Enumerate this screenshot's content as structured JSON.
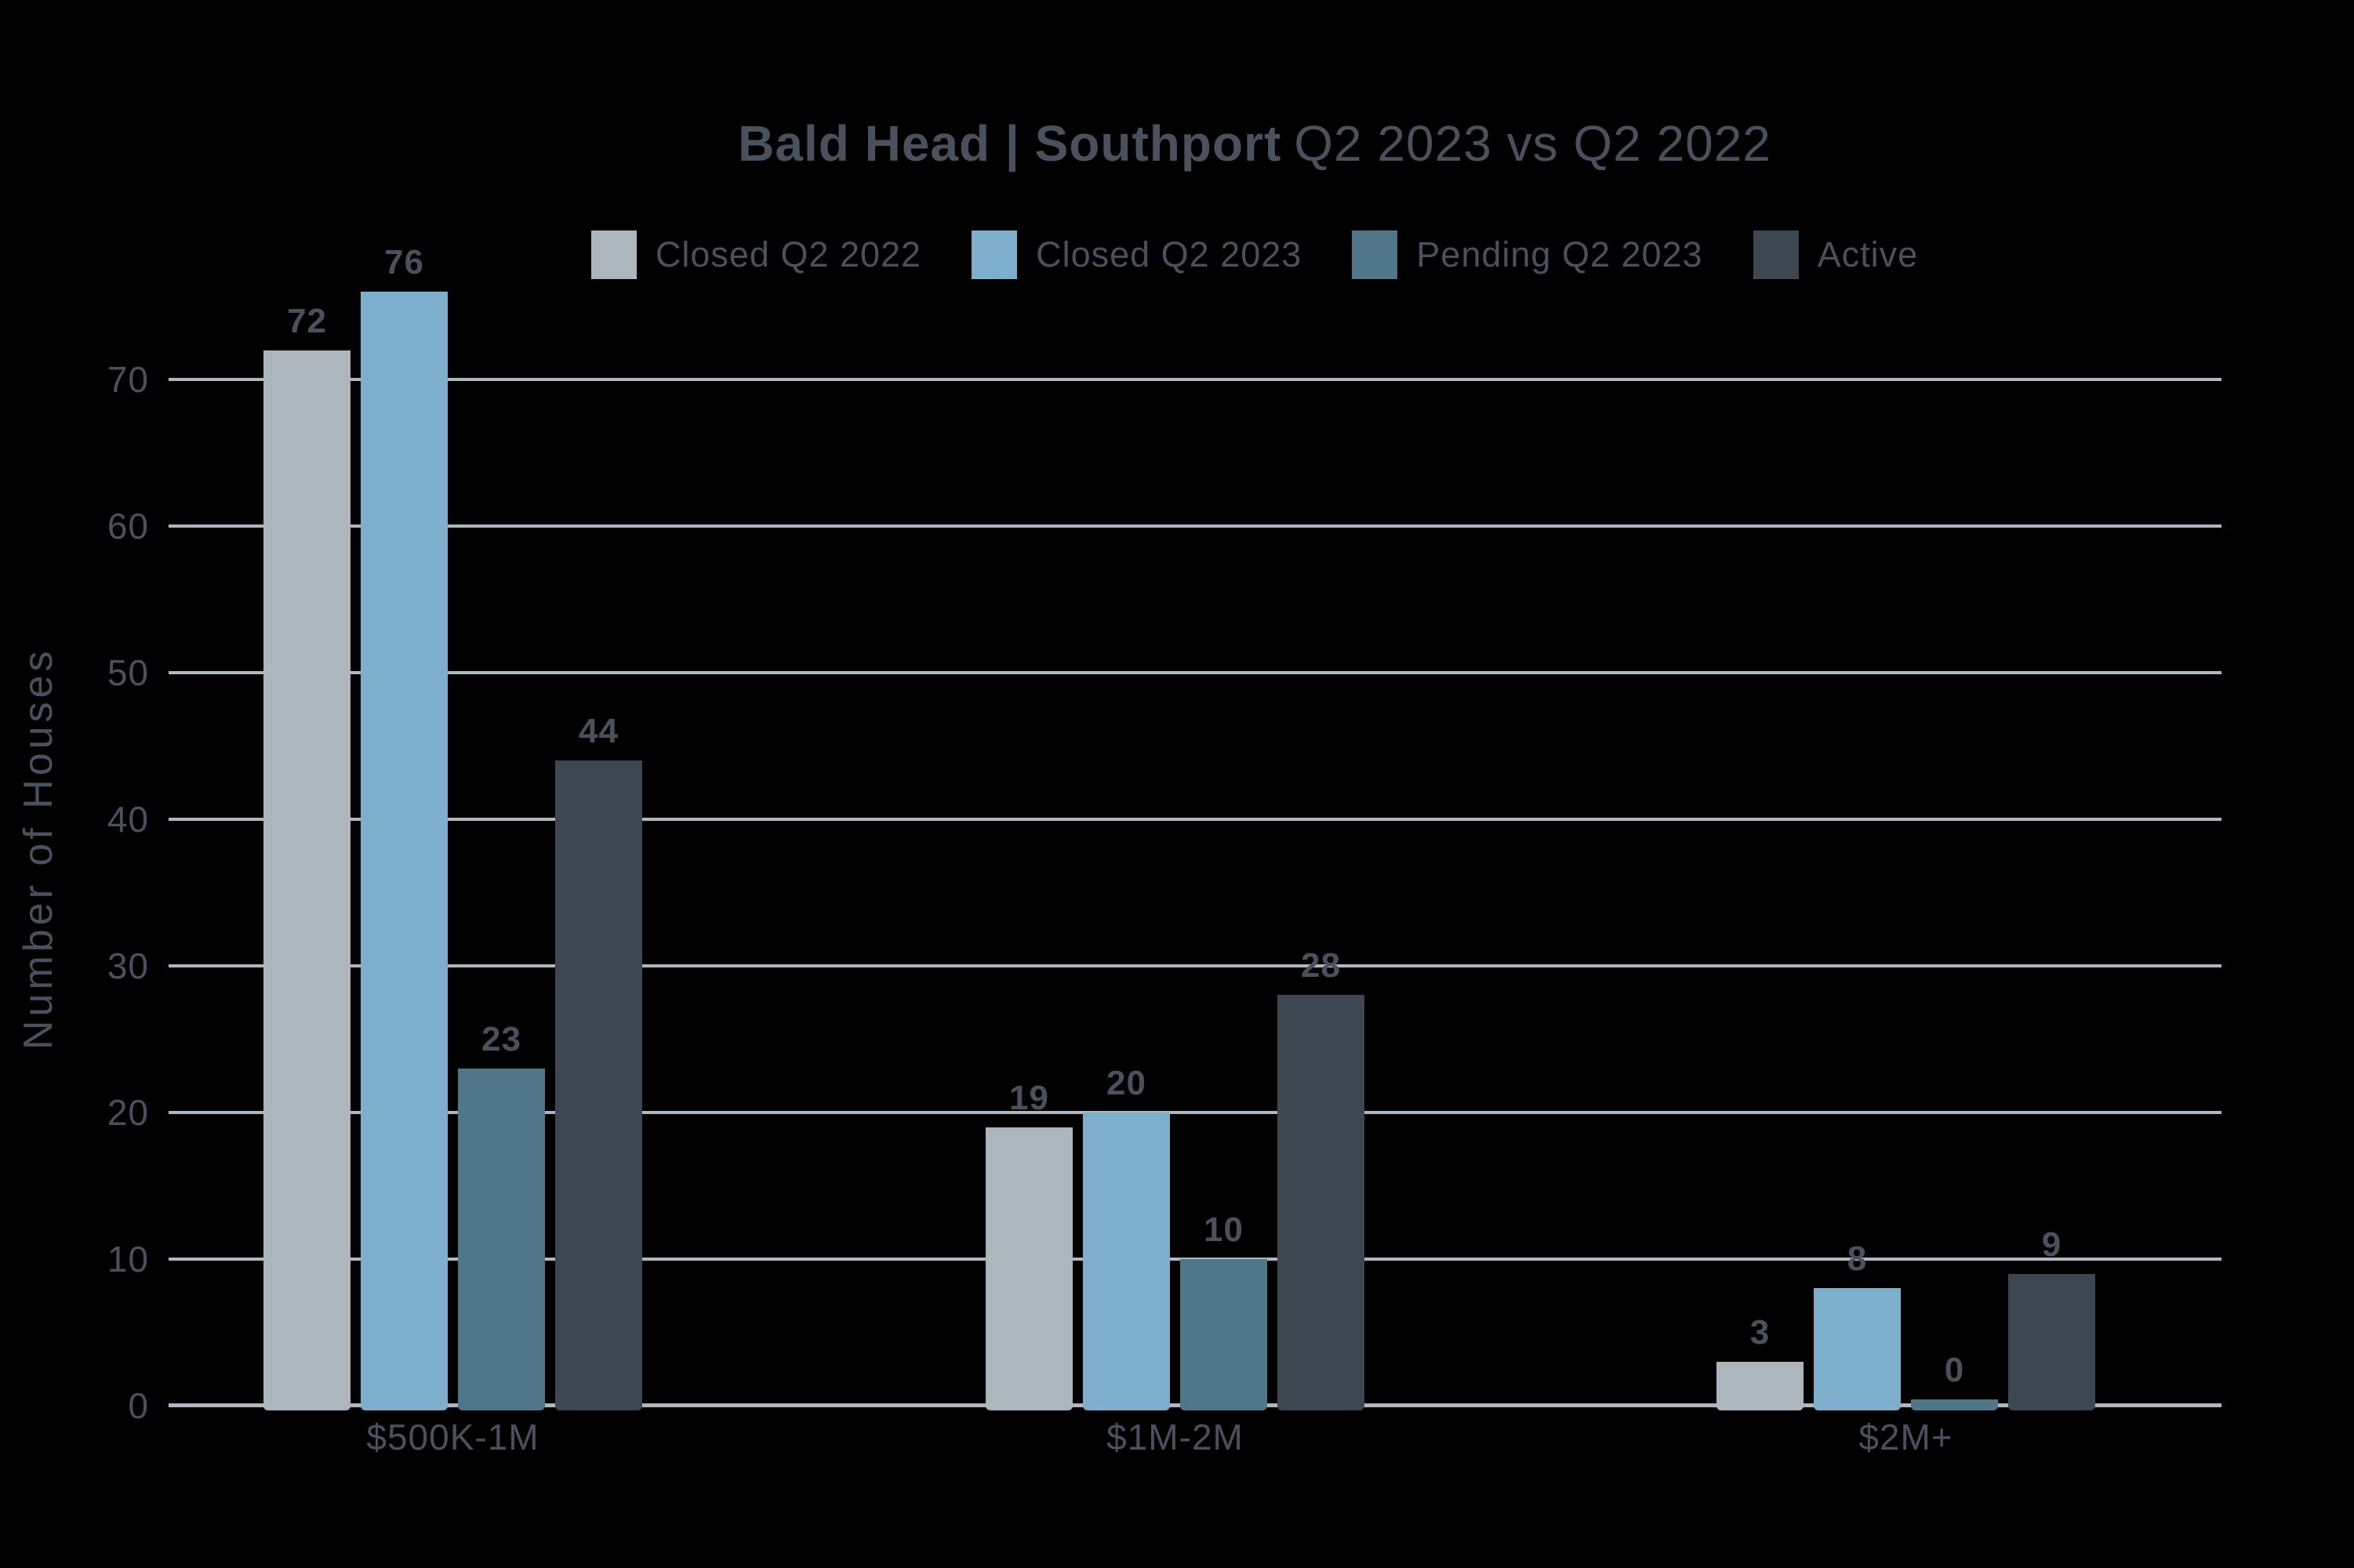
{
  "chart_data": {
    "type": "bar",
    "title_bold": "Bald Head | Southport",
    "title_regular": "Q2 2023 vs Q2 2022",
    "categories": [
      "$500K-1M",
      "$1M-2M",
      "$2M+"
    ],
    "series": [
      {
        "name": "Closed Q2 2022",
        "color": "#adb6bd",
        "values": [
          72,
          19,
          3
        ]
      },
      {
        "name": "Closed Q2 2023",
        "color": "#7dafcc",
        "values": [
          76,
          20,
          8
        ]
      },
      {
        "name": "Pending Q2 2023",
        "color": "#507789",
        "values": [
          23,
          10,
          0
        ]
      },
      {
        "name": "Active",
        "color": "#3d4751",
        "values": [
          44,
          28,
          9
        ]
      }
    ],
    "ylabel": "Number of Houses",
    "yticks": [
      0,
      10,
      20,
      30,
      40,
      50,
      60,
      70
    ],
    "ylim": [
      0,
      76
    ],
    "grid": true,
    "legend_position": "top",
    "background_color": "#000000",
    "text_color": "#49525c",
    "grid_color": "#b0b8bf"
  }
}
